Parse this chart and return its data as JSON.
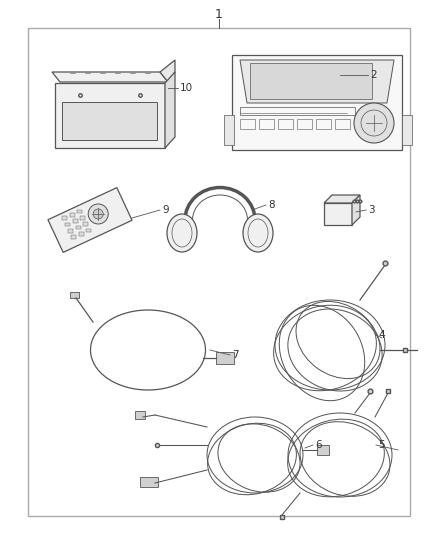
{
  "background_color": "#ffffff",
  "border_color": "#999999",
  "line_color": "#555555",
  "text_color": "#333333",
  "fig_width": 4.38,
  "fig_height": 5.33,
  "dpi": 100
}
